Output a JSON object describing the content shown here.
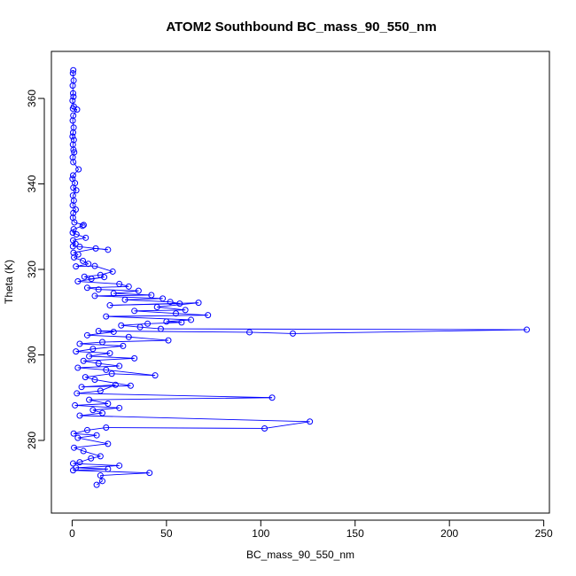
{
  "chart_data": {
    "type": "line",
    "title": "ATOM2 Southbound BC_mass_90_550_nm",
    "xlabel": "BC_mass_90_550_nm",
    "ylabel": "Theta (K)",
    "xlim": [
      -11,
      253
    ],
    "ylim": [
      263,
      371
    ],
    "xticks": [
      "0",
      "50",
      "100",
      "150",
      "200",
      "250"
    ],
    "xtick_values": [
      0,
      50,
      100,
      150,
      200,
      250
    ],
    "yticks": [
      "280",
      "300",
      "320",
      "340",
      "360"
    ],
    "ytick_values": [
      280,
      300,
      320,
      340,
      360
    ],
    "grid": false,
    "legend": "none",
    "markers": "open-circle",
    "series": [
      {
        "color": "#0000ff",
        "points": [
          [
            0.6,
            366.6
          ],
          [
            0.4,
            365.9
          ],
          [
            0.8,
            364.2
          ],
          [
            0.3,
            363.0
          ],
          [
            0.5,
            361.2
          ],
          [
            0.7,
            360.4
          ],
          [
            0.2,
            359.5
          ],
          [
            0.9,
            358.1
          ],
          [
            0.4,
            357.6
          ],
          [
            2.6,
            357.4
          ],
          [
            0.6,
            356.0
          ],
          [
            0.3,
            354.8
          ],
          [
            0.8,
            353.2
          ],
          [
            0.5,
            352.0
          ],
          [
            0.2,
            351.1
          ],
          [
            0.9,
            350.3
          ],
          [
            0.4,
            349.2
          ],
          [
            0.7,
            348.0
          ],
          [
            1.1,
            347.4
          ],
          [
            0.3,
            346.2
          ],
          [
            0.6,
            345.1
          ],
          [
            3.4,
            343.4
          ],
          [
            0.5,
            342.0
          ],
          [
            0.2,
            341.2
          ],
          [
            1.5,
            340.2
          ],
          [
            0.6,
            339.1
          ],
          [
            2.2,
            338.5
          ],
          [
            0.4,
            337.3
          ],
          [
            0.9,
            336.1
          ],
          [
            0.3,
            335.0
          ],
          [
            1.9,
            334.0
          ],
          [
            0.6,
            333.2
          ],
          [
            0.4,
            332.1
          ],
          [
            1.2,
            331.0
          ],
          [
            6.1,
            330.4
          ],
          [
            5.5,
            330.2
          ],
          [
            0.8,
            329.4
          ],
          [
            0.3,
            328.6
          ],
          [
            2.3,
            328.2
          ],
          [
            7.2,
            327.4
          ],
          [
            0.5,
            326.8
          ],
          [
            1.8,
            326.0
          ],
          [
            0.4,
            325.4
          ],
          [
            4.0,
            325.3
          ],
          [
            19.0,
            324.6
          ],
          [
            12.5,
            324.9
          ],
          [
            0.7,
            323.9
          ],
          [
            3.2,
            323.5
          ],
          [
            1.0,
            322.8
          ],
          [
            5.7,
            322.0
          ],
          [
            8.6,
            321.3
          ],
          [
            2.0,
            320.7
          ],
          [
            12.0,
            320.8
          ],
          [
            21.5,
            319.5
          ],
          [
            15.0,
            318.7
          ],
          [
            6.5,
            318.3
          ],
          [
            10.2,
            317.8
          ],
          [
            17.0,
            318.2
          ],
          [
            3.0,
            317.2
          ],
          [
            25.0,
            316.6
          ],
          [
            30.0,
            316.0
          ],
          [
            8.0,
            315.7
          ],
          [
            14.0,
            315.3
          ],
          [
            35.2,
            315.0
          ],
          [
            22.0,
            314.4
          ],
          [
            42.0,
            314.0
          ],
          [
            12.0,
            313.8
          ],
          [
            48.0,
            313.2
          ],
          [
            28.0,
            312.9
          ],
          [
            52.0,
            312.4
          ],
          [
            57.0,
            312.0
          ],
          [
            20.0,
            311.6
          ],
          [
            67.0,
            312.2
          ],
          [
            45.0,
            311.2
          ],
          [
            60.0,
            310.5
          ],
          [
            33.0,
            310.3
          ],
          [
            55.0,
            309.7
          ],
          [
            72.0,
            309.3
          ],
          [
            18.0,
            309.0
          ],
          [
            63.0,
            308.2
          ],
          [
            50.0,
            307.8
          ],
          [
            58.0,
            307.6
          ],
          [
            40.0,
            307.3
          ],
          [
            26.0,
            306.9
          ],
          [
            36.0,
            306.5
          ],
          [
            47.0,
            306.1
          ],
          [
            241.0,
            305.9
          ],
          [
            117.0,
            305.0
          ],
          [
            94.0,
            305.3
          ],
          [
            14.0,
            305.6
          ],
          [
            22.0,
            305.4
          ],
          [
            8.0,
            304.6
          ],
          [
            30.0,
            304.2
          ],
          [
            51.0,
            303.4
          ],
          [
            16.0,
            303.0
          ],
          [
            4.0,
            302.6
          ],
          [
            27.0,
            302.1
          ],
          [
            11.0,
            301.4
          ],
          [
            2.0,
            300.8
          ],
          [
            20.0,
            300.4
          ],
          [
            9.0,
            299.7
          ],
          [
            33.0,
            299.2
          ],
          [
            6.0,
            298.6
          ],
          [
            14.0,
            298.0
          ],
          [
            25.0,
            297.4
          ],
          [
            3.0,
            297.0
          ],
          [
            18.0,
            296.5
          ],
          [
            44.0,
            295.2
          ],
          [
            21.0,
            295.6
          ],
          [
            7.0,
            294.8
          ],
          [
            12.0,
            294.2
          ],
          [
            31.0,
            292.8
          ],
          [
            5.0,
            292.5
          ],
          [
            23.0,
            293.0
          ],
          [
            15.0,
            291.6
          ],
          [
            2.5,
            291.0
          ],
          [
            106.0,
            290.0
          ],
          [
            9.0,
            289.5
          ],
          [
            19.0,
            288.6
          ],
          [
            1.5,
            288.2
          ],
          [
            25.0,
            287.6
          ],
          [
            11.0,
            287.1
          ],
          [
            16.0,
            286.4
          ],
          [
            4.0,
            285.8
          ],
          [
            126.0,
            284.4
          ],
          [
            102.0,
            282.8
          ],
          [
            18.0,
            283.0
          ],
          [
            8.0,
            282.4
          ],
          [
            0.8,
            281.6
          ],
          [
            13.0,
            281.2
          ],
          [
            3.0,
            280.6
          ],
          [
            19.0,
            279.2
          ],
          [
            1.0,
            278.3
          ],
          [
            6.0,
            277.5
          ],
          [
            15.0,
            276.3
          ],
          [
            10.0,
            275.8
          ],
          [
            4.0,
            274.9
          ],
          [
            0.5,
            274.6
          ],
          [
            25.0,
            274.1
          ],
          [
            2.0,
            273.6
          ],
          [
            19.0,
            273.3
          ],
          [
            0.5,
            273.0
          ],
          [
            41.0,
            272.4
          ],
          [
            15.0,
            271.8
          ],
          [
            16.0,
            270.5
          ],
          [
            13.0,
            269.6
          ]
        ]
      }
    ]
  }
}
